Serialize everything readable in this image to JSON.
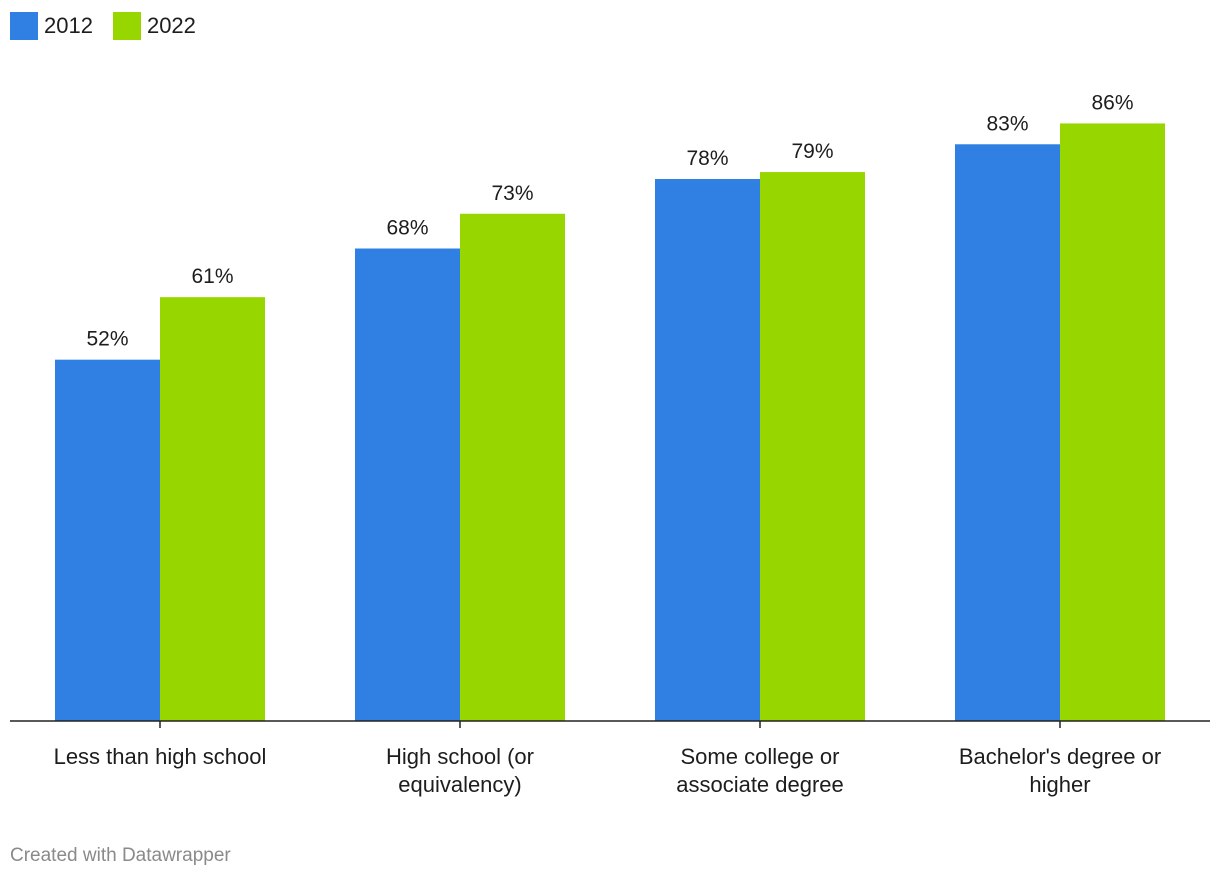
{
  "chart_data": {
    "type": "bar",
    "categories": [
      [
        "Less than high school"
      ],
      [
        "High school (or",
        "equivalency)"
      ],
      [
        "Some college or",
        "associate degree"
      ],
      [
        "Bachelor's degree or",
        "higher"
      ]
    ],
    "series": [
      {
        "name": "2012",
        "color": "#2f80e2",
        "values": [
          52,
          68,
          78,
          83
        ],
        "labels": [
          "52%",
          "68%",
          "78%",
          "83%"
        ]
      },
      {
        "name": "2022",
        "color": "#98d600",
        "values": [
          61,
          73,
          79,
          86
        ],
        "labels": [
          "61%",
          "73%",
          "79%",
          "86%"
        ]
      }
    ],
    "ylim": [
      0,
      100
    ],
    "grid": false,
    "legend_position": "top-left",
    "title": "",
    "xlabel": "",
    "ylabel": ""
  },
  "legend": {
    "item_2012": "2012",
    "item_2022": "2022",
    "color_2012": "#2f80e2",
    "color_2022": "#98d600"
  },
  "footer": {
    "credit": "Created with Datawrapper"
  }
}
